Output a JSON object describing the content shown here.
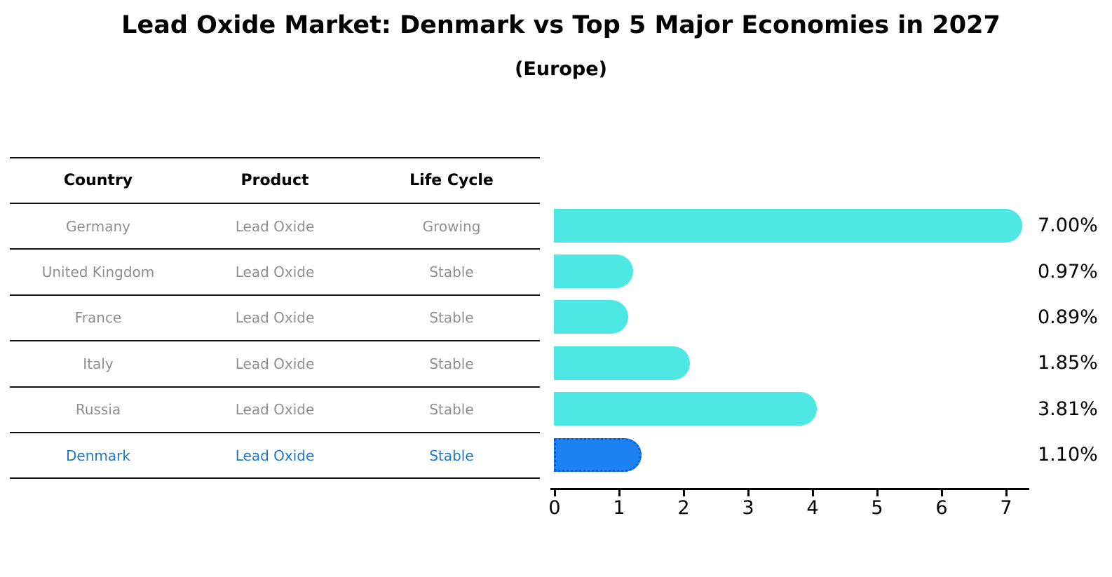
{
  "chart_data": {
    "type": "bar",
    "orientation": "horizontal",
    "title": "Lead Oxide Market: Denmark vs Top 5 Major Economies in 2027",
    "subtitle": "(Europe)",
    "categories": [
      "Germany",
      "United Kingdom",
      "France",
      "Italy",
      "Russia",
      "Denmark"
    ],
    "values": [
      7.0,
      0.97,
      0.89,
      1.85,
      3.81,
      1.1
    ],
    "value_labels": [
      "7.00%",
      "0.97%",
      "0.89%",
      "1.85%",
      "3.81%",
      "1.10%"
    ],
    "x_ticks": [
      0,
      1,
      2,
      3,
      4,
      5,
      6,
      7
    ],
    "xlim": [
      0,
      7.4
    ],
    "grid": false,
    "legend": false,
    "bar_color": "#4de8e3",
    "highlight": {
      "index": 5,
      "color": "#1c82f2",
      "border_color": "#0a5fd8",
      "border_style": "dotted",
      "label_color": "#1f77c8"
    }
  },
  "table": {
    "headers": {
      "country": "Country",
      "product": "Product",
      "life_cycle": "Life Cycle"
    },
    "rows": [
      {
        "country": "Germany",
        "product": "Lead Oxide",
        "life_cycle": "Growing",
        "highlight": false
      },
      {
        "country": "United Kingdom",
        "product": "Lead Oxide",
        "life_cycle": "Stable",
        "highlight": false
      },
      {
        "country": "France",
        "product": "Lead Oxide",
        "life_cycle": "Stable",
        "highlight": false
      },
      {
        "country": "Italy",
        "product": "Lead Oxide",
        "life_cycle": "Stable",
        "highlight": false
      },
      {
        "country": "Russia",
        "product": "Lead Oxide",
        "life_cycle": "Stable",
        "highlight": false
      },
      {
        "country": "Denmark",
        "product": "Lead Oxide",
        "life_cycle": "Stable",
        "highlight": true
      }
    ]
  },
  "colors": {
    "text_muted": "#8f8f8f",
    "text_default": "#000000",
    "axis": "#000000"
  }
}
